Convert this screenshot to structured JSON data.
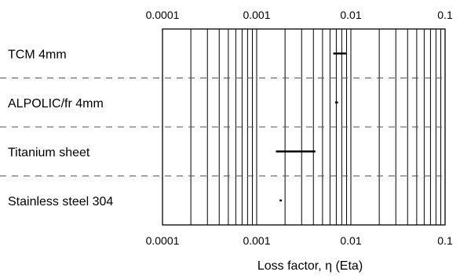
{
  "chart_data": {
    "type": "range-bar",
    "xscale": "log",
    "xlim": [
      0.0001,
      0.1
    ],
    "xlabel": "Loss factor, η (Eta)",
    "xticks": [
      0.0001,
      0.001,
      0.01,
      0.1
    ],
    "xtick_labels": [
      "0.0001",
      "0.001",
      "0.01",
      "0.1"
    ],
    "categories": [
      "TCM 4mm",
      "ALPOLIC/fr 4mm",
      "Titanium sheet",
      "Stainless steel 304"
    ],
    "ranges": [
      {
        "category": "TCM 4mm",
        "min": 0.0065,
        "max": 0.009
      },
      {
        "category": "ALPOLIC/fr 4mm",
        "min": 0.0068,
        "max": 0.0073
      },
      {
        "category": "Titanium sheet",
        "min": 0.0016,
        "max": 0.0042
      },
      {
        "category": "Stainless steel 304",
        "min": 0.00175,
        "max": 0.00185
      }
    ],
    "grid": {
      "vertical": "minor-log",
      "horizontal": "dashed"
    },
    "bar_color": "#000000"
  }
}
